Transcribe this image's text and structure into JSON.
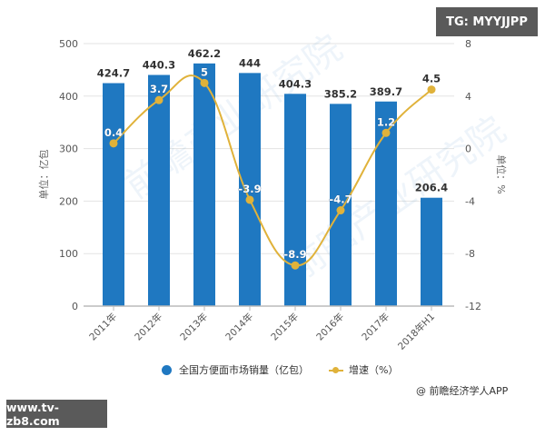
{
  "watermarks": {
    "top_right": "TG: MYYJJPP",
    "bottom_left": "www.tv-zb8.com"
  },
  "credit": "@ 前瞻经济学人APP",
  "legend": {
    "bar_label": "全国方便面市场销量（亿包）",
    "line_label": "增速（%）"
  },
  "colors": {
    "bar": "#1f78c1",
    "line": "#e0b23a",
    "grid": "#e3e3e3",
    "axis_text": "#555555",
    "badge_bg": "#5a5a5a"
  },
  "chart_data": {
    "type": "bar",
    "title": "",
    "categories": [
      "2011年",
      "2012年",
      "2013年",
      "2014年",
      "2015年",
      "2016年",
      "2017年",
      "2018年H1"
    ],
    "series": [
      {
        "name": "全国方便面市场销量（亿包）",
        "type": "bar",
        "axis": "left",
        "values": [
          424.7,
          440.3,
          462.2,
          444,
          404.3,
          385.2,
          389.7,
          206.4
        ]
      },
      {
        "name": "增速（%）",
        "type": "line",
        "axis": "right",
        "smooth": true,
        "values": [
          0.4,
          3.7,
          5,
          -3.9,
          -8.9,
          -4.7,
          1.2,
          4.5
        ]
      }
    ],
    "xlabel": "",
    "ylabel": "单位：亿包",
    "y2label": "单位：%",
    "ylim": [
      0,
      500
    ],
    "yticks": [
      0,
      100,
      200,
      300,
      400,
      500
    ],
    "y2lim": [
      -12,
      8
    ],
    "y2ticks": [
      -12,
      -8,
      -4,
      0,
      4,
      8
    ],
    "grid": true,
    "legend_position": "bottom"
  }
}
